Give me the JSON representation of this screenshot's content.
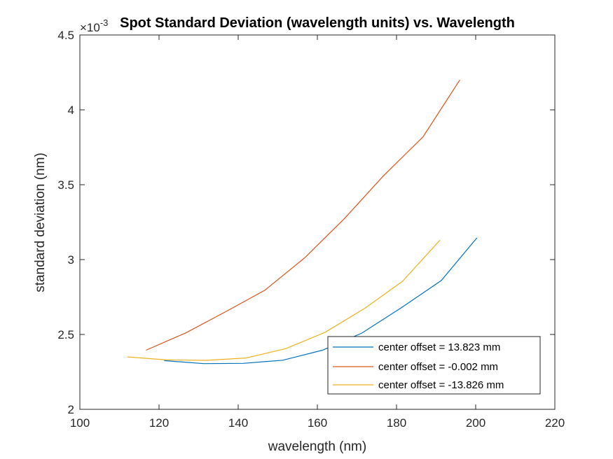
{
  "chart_data": {
    "type": "line",
    "title": "Spot Standard Deviation (wavelength units) vs. Wavelength",
    "xlabel": "wavelength (nm)",
    "ylabel": "standard deviation (nm)",
    "y_exponent_label": "×10",
    "y_exponent_power": "-3",
    "xlim": [
      100,
      220
    ],
    "ylim": [
      2,
      4.5
    ],
    "xticks": [
      "100",
      "120",
      "140",
      "160",
      "180",
      "200",
      "220"
    ],
    "yticks": [
      "2",
      "2.5",
      "3",
      "3.5",
      "4",
      "4.5"
    ],
    "legend_position": "bottom-right",
    "series": [
      {
        "name": "center offset = 13.823 mm",
        "color": "#0072BD",
        "x": [
          121.3,
          131.3,
          141.3,
          151.3,
          161.3,
          171.3,
          181.3,
          191.3,
          200.3
        ],
        "y": [
          2.325,
          2.305,
          2.307,
          2.328,
          2.395,
          2.51,
          2.68,
          2.86,
          3.145
        ]
      },
      {
        "name": "center offset = -0.002 mm",
        "color": "#D95319",
        "x": [
          116.7,
          126.7,
          136.7,
          146.7,
          156.7,
          166.7,
          176.7,
          186.7,
          196.0
        ],
        "y": [
          2.395,
          2.51,
          2.65,
          2.795,
          3.01,
          3.27,
          3.56,
          3.82,
          4.2
        ]
      },
      {
        "name": "center offset = -13.826 mm",
        "color": "#EDB120",
        "x": [
          112.0,
          122.0,
          132.0,
          142.0,
          152.0,
          162.0,
          172.0,
          181.5,
          191.0
        ],
        "y": [
          2.35,
          2.33,
          2.327,
          2.343,
          2.405,
          2.515,
          2.675,
          2.855,
          3.13
        ]
      }
    ]
  }
}
